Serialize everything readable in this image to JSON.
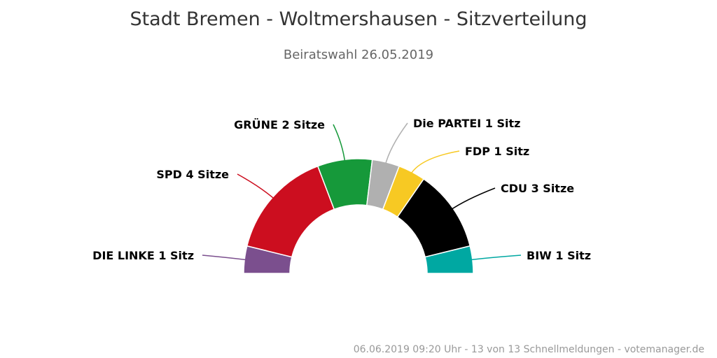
{
  "chart_data": {
    "type": "pie",
    "subtype": "semicircle-parliament",
    "title": "Stadt Bremen - Woltmershausen - Sitzverteilung",
    "subtitle": "Beiratswahl 26.05.2019",
    "total_seats": 13,
    "slices": [
      {
        "name": "DIE LINKE",
        "seats": 1,
        "label": "DIE LINKE 1 Sitz",
        "color": "#7b4f8e"
      },
      {
        "name": "SPD",
        "seats": 4,
        "label": "SPD 4 Sitze",
        "color": "#cc0e1f"
      },
      {
        "name": "GRÜNE",
        "seats": 2,
        "label": "GRÜNE 2 Sitze",
        "color": "#16993a"
      },
      {
        "name": "Die PARTEI",
        "seats": 1,
        "label": "Die PARTEI 1 Sitz",
        "color": "#b0b0b0"
      },
      {
        "name": "FDP",
        "seats": 1,
        "label": "FDP 1 Sitz",
        "color": "#f7c923"
      },
      {
        "name": "CDU",
        "seats": 3,
        "label": "CDU 3 Sitze",
        "color": "#000000"
      },
      {
        "name": "BIW",
        "seats": 1,
        "label": "BIW 1 Sitz",
        "color": "#00a8a2"
      }
    ]
  },
  "credits": "06.06.2019 09:20 Uhr - 13 von 13 Schnellmeldungen - votemanager.de"
}
